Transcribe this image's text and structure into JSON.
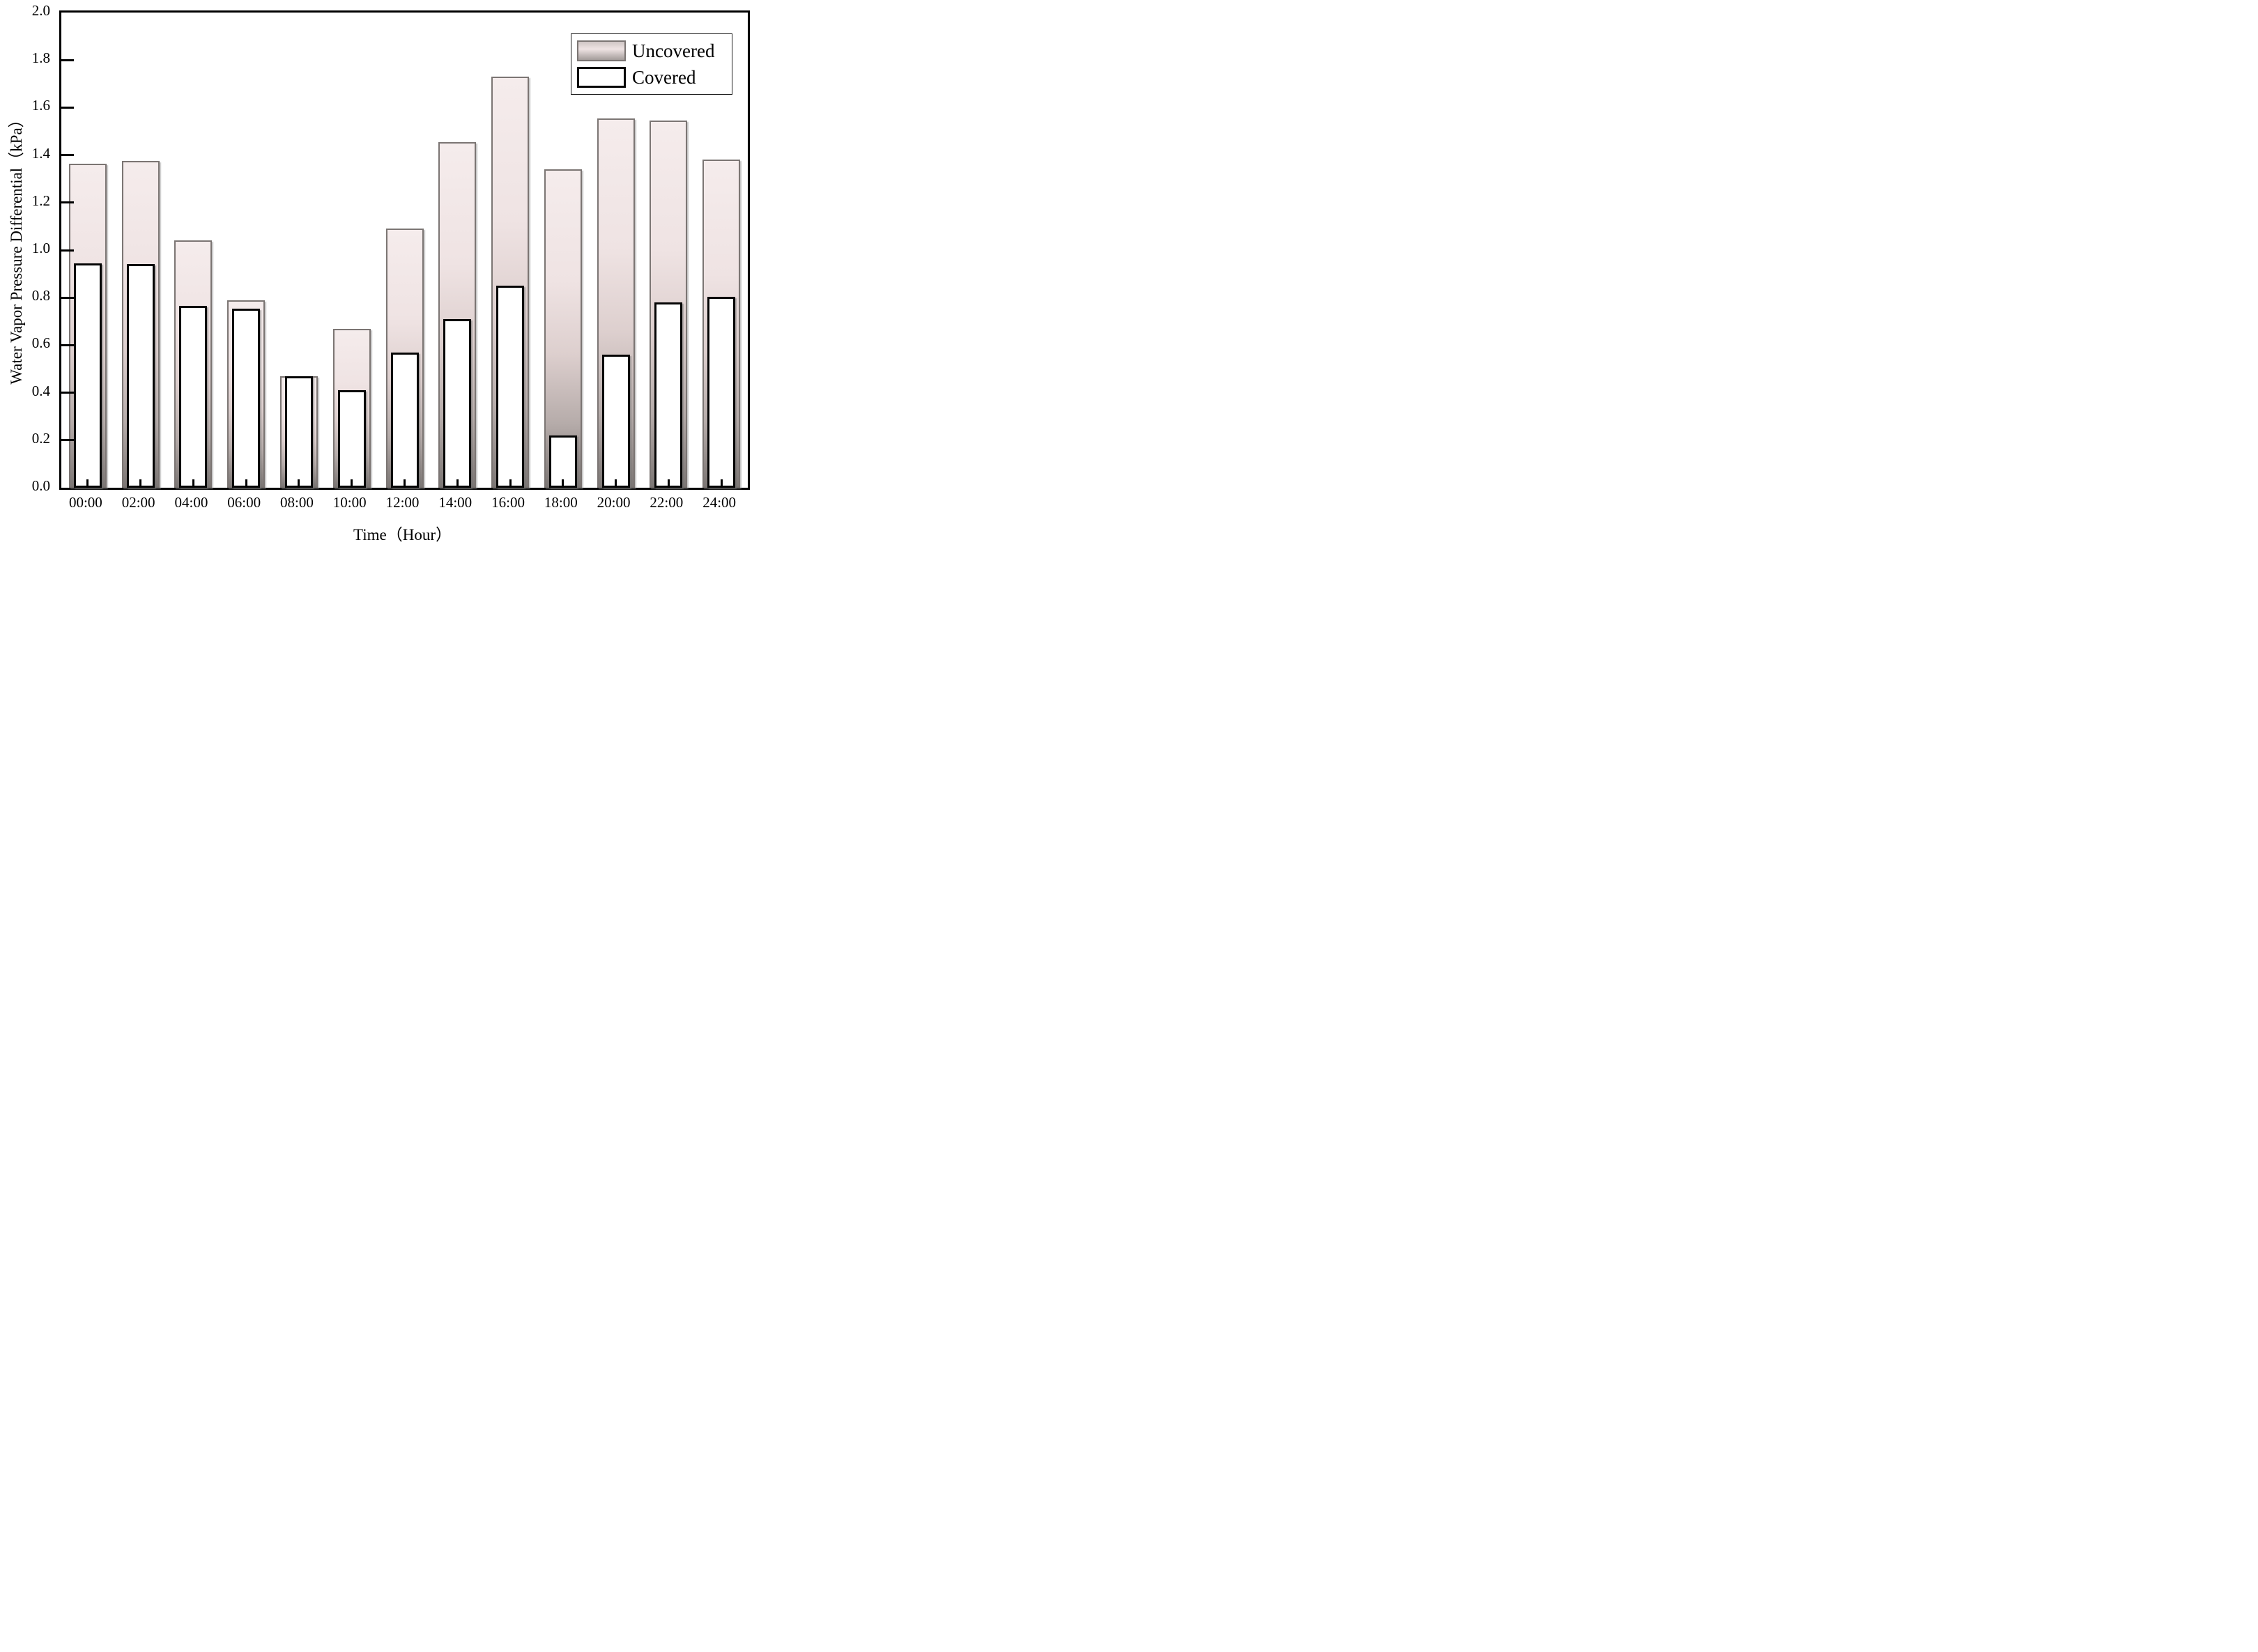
{
  "figure": {
    "xlabel": "Time（Hour）",
    "ylabel": "Water Vapor Pressure Differential（kPa）"
  },
  "legend": {
    "items": [
      {
        "label": "Uncovered",
        "swatch": "uncovered"
      },
      {
        "label": "Covered",
        "swatch": "covered"
      }
    ]
  },
  "colors": {
    "uncovered_fill_top": "#f5ecec",
    "uncovered_fill_bottom": "#7c7775",
    "uncovered_border": "#7b7573",
    "covered_fill": "#ffffff",
    "covered_border": "#000000",
    "axis": "#000000",
    "background": "#ffffff"
  },
  "chart_data": {
    "type": "bar",
    "categories": [
      "00:00",
      "02:00",
      "04:00",
      "06:00",
      "08:00",
      "10:00",
      "12:00",
      "14:00",
      "16:00",
      "18:00",
      "20:00",
      "22:00",
      "24:00"
    ],
    "series": [
      {
        "name": "Uncovered",
        "values": [
          1.365,
          1.375,
          1.04,
          0.79,
          0.47,
          0.67,
          1.09,
          1.455,
          1.73,
          1.34,
          1.555,
          1.545,
          1.38
        ]
      },
      {
        "name": "Covered",
        "values": [
          0.945,
          0.94,
          0.765,
          0.755,
          0.47,
          0.41,
          0.57,
          0.71,
          0.85,
          0.22,
          0.56,
          0.78,
          0.805
        ]
      }
    ],
    "title": "",
    "xlabel": "Time（Hour）",
    "ylabel": "Water Vapor Pressure Differential（kPa）",
    "ylim": [
      0.0,
      2.0
    ],
    "ytick_step": 0.2,
    "ytick_labels": [
      "0.0",
      "0.2",
      "0.4",
      "0.6",
      "0.8",
      "1.0",
      "1.2",
      "1.4",
      "1.6",
      "1.8",
      "2.0"
    ],
    "grid": false,
    "legend_position": "top-right",
    "bar_style": "overlaid"
  }
}
